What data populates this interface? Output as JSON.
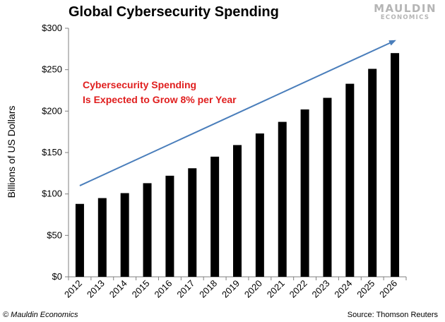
{
  "header": {
    "title": "Global Cybersecurity Spending",
    "logo_top": "MAULDIN",
    "logo_bottom": "ECONOMICS"
  },
  "footer": {
    "copyright": "© Mauldin Economics",
    "source": "Source: Thomson Reuters"
  },
  "annotation": {
    "line1": "Cybersecurity  Spending",
    "line2": "Is Expected to Grow 8% per Year",
    "color": "#e01e1e"
  },
  "colors": {
    "bars": "#000000",
    "trend_arrow": "#4a7ebb",
    "logo": "#b5b5b5"
  },
  "chart_data": {
    "type": "bar",
    "title": "Global Cybersecurity Spending",
    "xlabel": "",
    "ylabel": "Billions of US Dollars",
    "categories": [
      "2012",
      "2013",
      "2014",
      "2015",
      "2016",
      "2017",
      "2018",
      "2019",
      "2020",
      "2021",
      "2022",
      "2023",
      "2024",
      "2025",
      "2026"
    ],
    "series": [
      {
        "values": [
          88,
          95,
          101,
          113,
          122,
          131,
          145,
          159,
          173,
          187,
          202,
          216,
          233,
          251,
          270
        ]
      }
    ],
    "ylim": [
      0,
      300
    ],
    "yticks": [
      0,
      50,
      100,
      150,
      200,
      250,
      300
    ],
    "ytick_labels": [
      "$0",
      "$50",
      "$100",
      "$150",
      "$200",
      "$250",
      "$300"
    ],
    "trend_arrow": {
      "from": [
        "2012",
        110
      ],
      "to": [
        "2026",
        285
      ]
    },
    "grid": false,
    "legend": "none"
  }
}
